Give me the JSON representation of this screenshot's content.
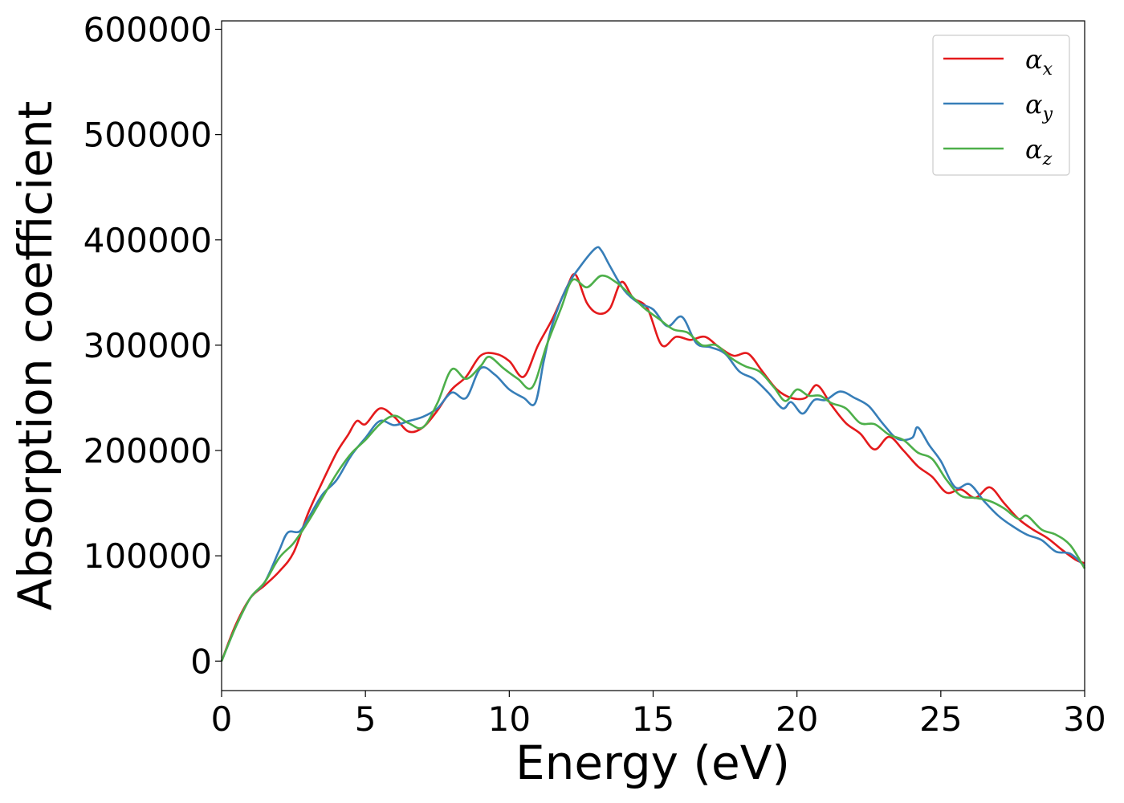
{
  "chart_data": {
    "type": "line",
    "xlabel": "Energy (eV)",
    "ylabel": "Absorption coefficient",
    "xlim": [
      0,
      30
    ],
    "ylim": [
      -28000,
      608000
    ],
    "xticks": [
      0,
      5,
      10,
      15,
      20,
      25,
      30
    ],
    "xtick_labels": [
      "0",
      "5",
      "10",
      "15",
      "20",
      "25",
      "30"
    ],
    "yticks": [
      0,
      100000,
      200000,
      300000,
      400000,
      500000,
      600000
    ],
    "ytick_labels": [
      "0",
      "100000",
      "200000",
      "300000",
      "400000",
      "500000",
      "600000"
    ],
    "grid": false,
    "legend_position": "top-right",
    "series": [
      {
        "name": "αx",
        "legend_symbol": "α",
        "legend_sub": "x",
        "color": "#e41a1c",
        "points": [
          [
            0,
            0
          ],
          [
            0.5,
            35000
          ],
          [
            1,
            60000
          ],
          [
            1.5,
            72000
          ],
          [
            2,
            85000
          ],
          [
            2.5,
            103000
          ],
          [
            3,
            140000
          ],
          [
            3.5,
            170000
          ],
          [
            4,
            198000
          ],
          [
            4.4,
            215000
          ],
          [
            4.7,
            228000
          ],
          [
            5,
            225000
          ],
          [
            5.5,
            240000
          ],
          [
            6,
            232000
          ],
          [
            6.5,
            218000
          ],
          [
            7,
            222000
          ],
          [
            7.5,
            238000
          ],
          [
            8,
            258000
          ],
          [
            8.5,
            270000
          ],
          [
            9,
            290000
          ],
          [
            9.5,
            292000
          ],
          [
            10,
            285000
          ],
          [
            10.5,
            270000
          ],
          [
            11,
            300000
          ],
          [
            11.5,
            325000
          ],
          [
            12,
            355000
          ],
          [
            12.3,
            367000
          ],
          [
            12.7,
            340000
          ],
          [
            13.1,
            330000
          ],
          [
            13.5,
            335000
          ],
          [
            13.9,
            360000
          ],
          [
            14.3,
            345000
          ],
          [
            14.8,
            335000
          ],
          [
            15.3,
            300000
          ],
          [
            15.8,
            308000
          ],
          [
            16.3,
            305000
          ],
          [
            16.8,
            308000
          ],
          [
            17.3,
            298000
          ],
          [
            17.8,
            290000
          ],
          [
            18.3,
            292000
          ],
          [
            18.8,
            275000
          ],
          [
            19.3,
            258000
          ],
          [
            19.8,
            250000
          ],
          [
            20.3,
            250000
          ],
          [
            20.7,
            262000
          ],
          [
            21.2,
            243000
          ],
          [
            21.7,
            226000
          ],
          [
            22.2,
            216000
          ],
          [
            22.7,
            201000
          ],
          [
            23.2,
            213000
          ],
          [
            23.7,
            200000
          ],
          [
            24.2,
            185000
          ],
          [
            24.7,
            175000
          ],
          [
            25.2,
            160000
          ],
          [
            25.7,
            163000
          ],
          [
            26.2,
            155000
          ],
          [
            26.7,
            165000
          ],
          [
            27.2,
            150000
          ],
          [
            27.7,
            135000
          ],
          [
            28.2,
            125000
          ],
          [
            28.7,
            117000
          ],
          [
            29.2,
            106000
          ],
          [
            29.7,
            96000
          ],
          [
            30,
            93000
          ]
        ]
      },
      {
        "name": "αy",
        "legend_symbol": "α",
        "legend_sub": "y",
        "color": "#377eb8",
        "points": [
          [
            0,
            0
          ],
          [
            0.5,
            33000
          ],
          [
            1,
            60000
          ],
          [
            1.5,
            75000
          ],
          [
            2,
            105000
          ],
          [
            2.3,
            122000
          ],
          [
            2.7,
            123000
          ],
          [
            3,
            135000
          ],
          [
            3.5,
            158000
          ],
          [
            4,
            172000
          ],
          [
            4.5,
            195000
          ],
          [
            5,
            212000
          ],
          [
            5.5,
            228000
          ],
          [
            6,
            224000
          ],
          [
            6.5,
            228000
          ],
          [
            7,
            232000
          ],
          [
            7.5,
            240000
          ],
          [
            8,
            255000
          ],
          [
            8.5,
            250000
          ],
          [
            9,
            278000
          ],
          [
            9.5,
            272000
          ],
          [
            10,
            258000
          ],
          [
            10.5,
            250000
          ],
          [
            10.9,
            245000
          ],
          [
            11.2,
            285000
          ],
          [
            11.5,
            320000
          ],
          [
            12,
            355000
          ],
          [
            12.5,
            376000
          ],
          [
            13,
            392000
          ],
          [
            13.2,
            390000
          ],
          [
            13.5,
            375000
          ],
          [
            14,
            352000
          ],
          [
            14.5,
            340000
          ],
          [
            15,
            334000
          ],
          [
            15.5,
            318000
          ],
          [
            16,
            327000
          ],
          [
            16.5,
            302000
          ],
          [
            17,
            298000
          ],
          [
            17.5,
            292000
          ],
          [
            18,
            275000
          ],
          [
            18.5,
            268000
          ],
          [
            19,
            255000
          ],
          [
            19.5,
            240000
          ],
          [
            19.8,
            246000
          ],
          [
            20.2,
            235000
          ],
          [
            20.6,
            248000
          ],
          [
            21,
            248000
          ],
          [
            21.5,
            256000
          ],
          [
            22,
            250000
          ],
          [
            22.5,
            242000
          ],
          [
            23,
            225000
          ],
          [
            23.5,
            211000
          ],
          [
            24,
            212000
          ],
          [
            24.2,
            222000
          ],
          [
            24.6,
            205000
          ],
          [
            25,
            190000
          ],
          [
            25.5,
            165000
          ],
          [
            26,
            168000
          ],
          [
            26.5,
            152000
          ],
          [
            27,
            138000
          ],
          [
            27.5,
            128000
          ],
          [
            28,
            120000
          ],
          [
            28.5,
            115000
          ],
          [
            29,
            104000
          ],
          [
            29.5,
            102000
          ],
          [
            30,
            90000
          ]
        ]
      },
      {
        "name": "αz",
        "legend_symbol": "α",
        "legend_sub": "z",
        "color": "#4daf4a",
        "points": [
          [
            0,
            0
          ],
          [
            0.5,
            33000
          ],
          [
            1,
            60000
          ],
          [
            1.5,
            75000
          ],
          [
            2,
            98000
          ],
          [
            2.5,
            112000
          ],
          [
            3,
            132000
          ],
          [
            3.5,
            155000
          ],
          [
            4,
            178000
          ],
          [
            4.5,
            197000
          ],
          [
            5,
            210000
          ],
          [
            5.5,
            225000
          ],
          [
            6,
            233000
          ],
          [
            6.5,
            226000
          ],
          [
            7,
            222000
          ],
          [
            7.5,
            245000
          ],
          [
            8,
            277000
          ],
          [
            8.5,
            268000
          ],
          [
            9,
            280000
          ],
          [
            9.3,
            289000
          ],
          [
            9.8,
            278000
          ],
          [
            10.3,
            268000
          ],
          [
            10.8,
            260000
          ],
          [
            11.3,
            300000
          ],
          [
            11.8,
            335000
          ],
          [
            12.2,
            362000
          ],
          [
            12.7,
            355000
          ],
          [
            13.2,
            366000
          ],
          [
            13.7,
            360000
          ],
          [
            14.2,
            348000
          ],
          [
            14.7,
            335000
          ],
          [
            15.2,
            325000
          ],
          [
            15.7,
            315000
          ],
          [
            16.2,
            312000
          ],
          [
            16.7,
            300000
          ],
          [
            17.2,
            300000
          ],
          [
            17.7,
            288000
          ],
          [
            18.2,
            280000
          ],
          [
            18.7,
            275000
          ],
          [
            19.2,
            260000
          ],
          [
            19.6,
            247000
          ],
          [
            20,
            258000
          ],
          [
            20.4,
            252000
          ],
          [
            20.8,
            252000
          ],
          [
            21.2,
            245000
          ],
          [
            21.7,
            240000
          ],
          [
            22.2,
            226000
          ],
          [
            22.7,
            225000
          ],
          [
            23.2,
            215000
          ],
          [
            23.7,
            210000
          ],
          [
            24.2,
            198000
          ],
          [
            24.7,
            192000
          ],
          [
            25.2,
            172000
          ],
          [
            25.7,
            157000
          ],
          [
            26.2,
            155000
          ],
          [
            26.7,
            152000
          ],
          [
            27.2,
            145000
          ],
          [
            27.7,
            135000
          ],
          [
            28,
            138000
          ],
          [
            28.5,
            125000
          ],
          [
            29,
            120000
          ],
          [
            29.5,
            110000
          ],
          [
            30,
            88000
          ]
        ]
      }
    ]
  }
}
